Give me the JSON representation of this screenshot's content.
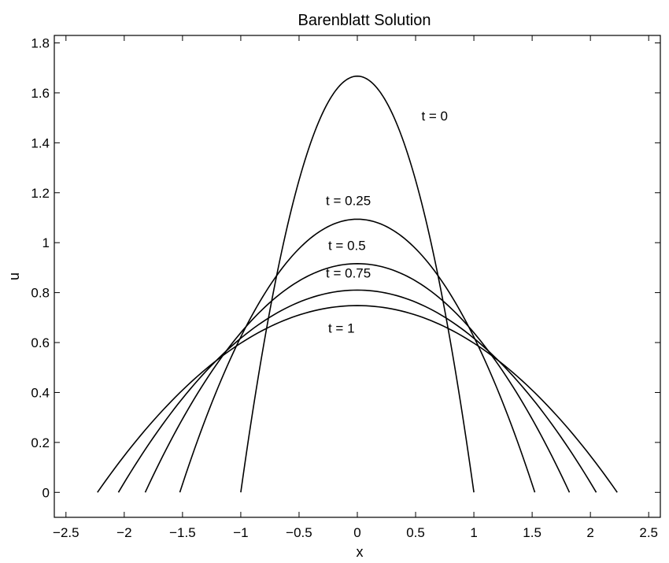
{
  "chart_data": {
    "type": "line",
    "title": "Barenblatt Solution",
    "xlabel": "x",
    "ylabel": "u",
    "xlim": [
      -2.6,
      2.6
    ],
    "ylim": [
      -0.1,
      1.83
    ],
    "grid": false,
    "legend": "none",
    "xticks": [
      -2.5,
      -2,
      -1.5,
      -1,
      -0.5,
      0,
      0.5,
      1,
      1.5,
      2,
      2.5
    ],
    "xtick_labels": [
      "−2.5",
      "−2",
      "−1.5",
      "−1",
      "−0.5",
      "0",
      "0.5",
      "1",
      "1.5",
      "2",
      "2.5"
    ],
    "yticks": [
      0,
      0.2,
      0.4,
      0.6,
      0.8,
      1,
      1.2,
      1.4,
      1.6,
      1.8
    ],
    "ytick_labels": [
      "0",
      "0.2",
      "0.4",
      "0.6",
      "0.8",
      "1",
      "1.2",
      "1.4",
      "1.6",
      "1.8"
    ],
    "series": [
      {
        "name": "t = 0",
        "peak": 1.667,
        "support": 1.0
      },
      {
        "name": "t = 0.25",
        "peak": 1.094,
        "support": 1.523
      },
      {
        "name": "t = 0.5",
        "peak": 0.916,
        "support": 1.82
      },
      {
        "name": "t = 0.75",
        "peak": 0.81,
        "support": 2.05
      },
      {
        "name": "t = 1",
        "peak": 0.748,
        "support": 2.23
      }
    ],
    "annotations": [
      {
        "text": "t = 0",
        "x": 0.55,
        "y": 1.49
      },
      {
        "text": "t = 0.25",
        "x": -0.27,
        "y": 1.15
      },
      {
        "text": "t = 0.5",
        "x": -0.25,
        "y": 0.97
      },
      {
        "text": "t = 0.75",
        "x": -0.27,
        "y": 0.86
      },
      {
        "text": "t = 1",
        "x": -0.25,
        "y": 0.64
      }
    ],
    "line_color": "#000000"
  }
}
